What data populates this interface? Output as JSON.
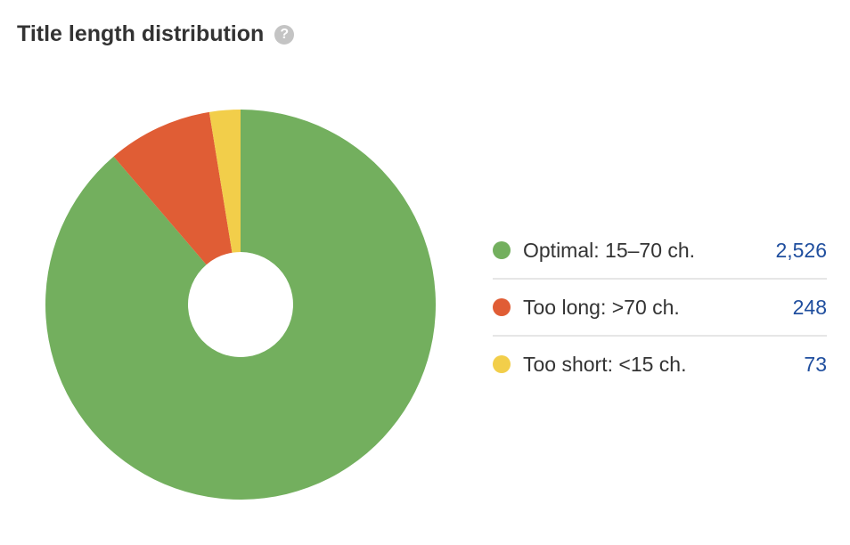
{
  "header": {
    "title": "Title length distribution",
    "help_icon": "?"
  },
  "legend": [
    {
      "label": "Optimal: 15–70 ch.",
      "value": "2,526",
      "color": "#73AF5E"
    },
    {
      "label": "Too long: >70 ch.",
      "value": "248",
      "color": "#E05D35"
    },
    {
      "label": "Too short: <15 ch.",
      "value": "73",
      "color": "#F2CE4A"
    }
  ],
  "chart_data": {
    "type": "pie",
    "title": "Title length distribution",
    "donut": true,
    "categories": [
      "Optimal: 15–70 ch.",
      "Too long: >70 ch.",
      "Too short: <15 ch."
    ],
    "values": [
      2526,
      248,
      73
    ],
    "colors": [
      "#73AF5E",
      "#E05D35",
      "#F2CE4A"
    ],
    "legend_position": "right"
  }
}
